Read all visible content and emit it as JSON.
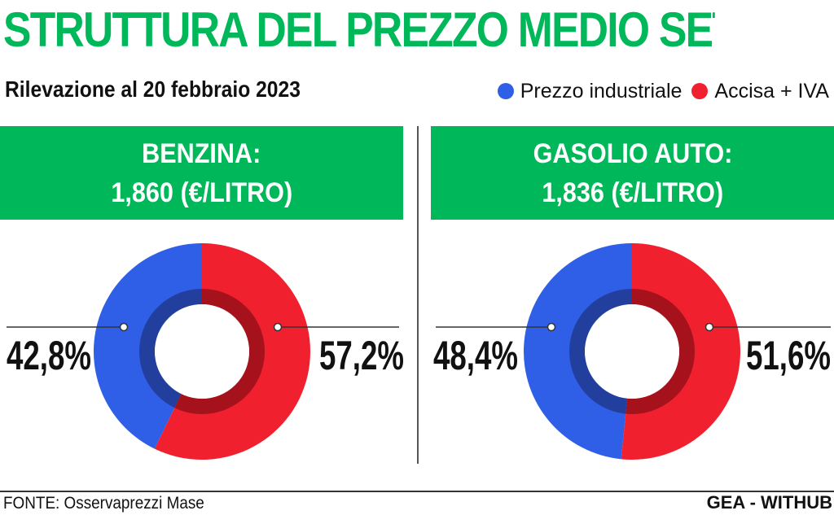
{
  "title": "STRUTTURA DEL PREZZO MEDIO SETTIMANALE",
  "subtitle": "Rilevazione al 20 febbraio 2023",
  "legend": [
    {
      "label": "Prezzo industriale",
      "color": "#2f5fe6"
    },
    {
      "label": "Accisa + IVA",
      "color": "#f0202e"
    }
  ],
  "accent_color": "#00b85a",
  "footer": {
    "source": "FONTE: Osservaprezzi Mase",
    "credit": "GEA - WITHUB"
  },
  "chart_data": [
    {
      "type": "pie",
      "title_line1": "BENZINA:",
      "title_line2": "1,860 (€/LITRO)",
      "categories": [
        "Prezzo industriale",
        "Accisa + IVA"
      ],
      "values": [
        42.8,
        57.2
      ],
      "labels": [
        "42,8%",
        "57,2%"
      ]
    },
    {
      "type": "pie",
      "title_line1": "GASOLIO AUTO:",
      "title_line2": "1,836 (€/LITRO)",
      "categories": [
        "Prezzo industriale",
        "Accisa + IVA"
      ],
      "values": [
        48.4,
        51.6
      ],
      "labels": [
        "48,4%",
        "51,6%"
      ]
    }
  ]
}
